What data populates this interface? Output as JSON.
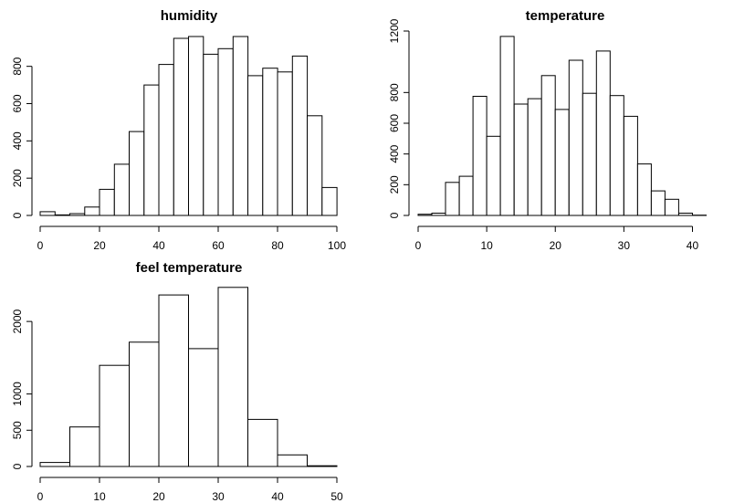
{
  "chart_data": [
    {
      "type": "bar",
      "title": "humidity",
      "xlim": [
        0,
        100
      ],
      "ylim": [
        0,
        960
      ],
      "x_ticks": [
        "0",
        "20",
        "40",
        "60",
        "80",
        "100"
      ],
      "y_ticks": [
        "0",
        "200",
        "400",
        "600",
        "800"
      ],
      "bin_edges": [
        0,
        5,
        10,
        15,
        20,
        25,
        30,
        35,
        40,
        45,
        50,
        55,
        60,
        65,
        70,
        75,
        80,
        85,
        90,
        95,
        100
      ],
      "values": [
        20,
        3,
        10,
        45,
        140,
        275,
        450,
        700,
        810,
        950,
        960,
        865,
        895,
        960,
        750,
        790,
        770,
        855,
        535,
        150
      ]
    },
    {
      "type": "bar",
      "title": "temperature",
      "xlim": [
        0,
        41
      ],
      "ylim": [
        0,
        1200
      ],
      "x_ticks": [
        "0",
        "10",
        "20",
        "30",
        "40"
      ],
      "y_ticks": [
        "0",
        "200",
        "400",
        "600",
        "800",
        "1200"
      ],
      "bin_edges": [
        0,
        2,
        4,
        6,
        8,
        10,
        12,
        14,
        16,
        18,
        20,
        22,
        24,
        26,
        28,
        30,
        32,
        34,
        36,
        38,
        40,
        42
      ],
      "values": [
        8,
        15,
        215,
        255,
        775,
        515,
        1165,
        725,
        760,
        910,
        690,
        1010,
        795,
        1070,
        780,
        645,
        335,
        160,
        105,
        15,
        2
      ]
    },
    {
      "type": "bar",
      "title": "feel temperature",
      "xlim": [
        0,
        50
      ],
      "ylim": [
        0,
        2480
      ],
      "x_ticks": [
        "0",
        "10",
        "20",
        "30",
        "40",
        "50"
      ],
      "y_ticks": [
        "0",
        "500",
        "1000",
        "2000"
      ],
      "bin_edges": [
        0,
        5,
        10,
        15,
        20,
        25,
        30,
        35,
        40,
        45,
        50
      ],
      "values": [
        55,
        545,
        1395,
        1715,
        2365,
        1625,
        2470,
        650,
        160,
        10
      ]
    }
  ]
}
